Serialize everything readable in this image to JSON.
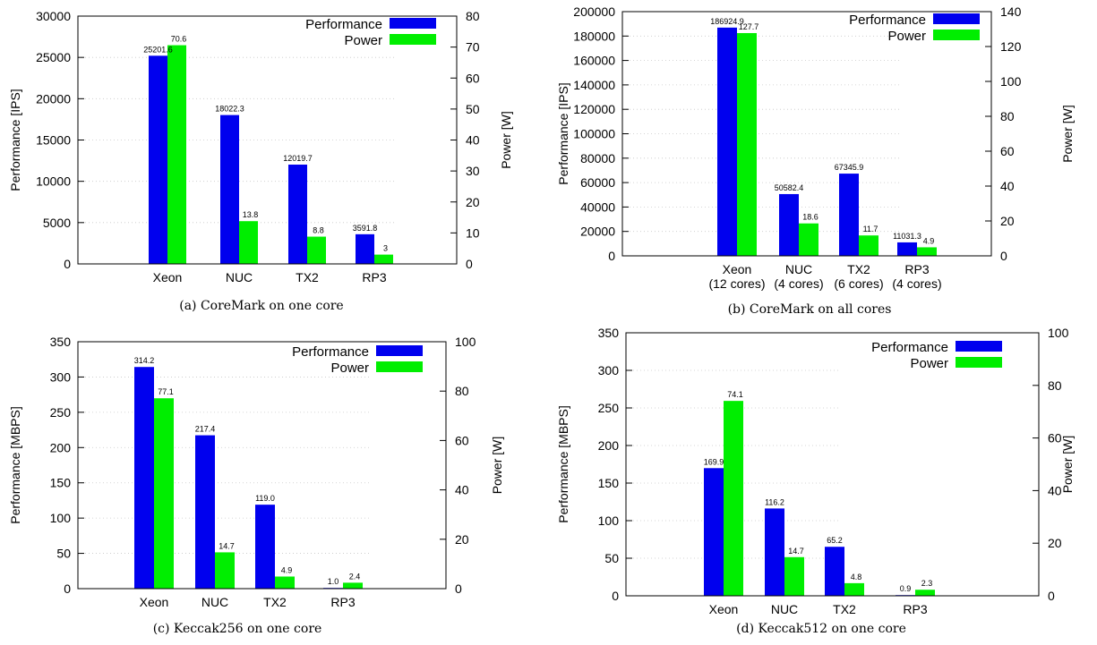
{
  "chart_data": [
    {
      "type": "bar",
      "caption": "(a) CoreMark on one core",
      "categories": [
        "Xeon",
        "NUC",
        "TX2",
        "RP3"
      ],
      "ylabel": "Performance [IPS]",
      "y2label": "Power [W]",
      "ylim": [
        0,
        30000
      ],
      "y2lim": [
        0,
        80
      ],
      "yticks": [
        "0",
        "5000",
        "10000",
        "15000",
        "20000",
        "25000",
        "30000"
      ],
      "y2ticks": [
        "0",
        "10",
        "20",
        "30",
        "40",
        "50",
        "60",
        "70",
        "80"
      ],
      "legend_position": "top-right",
      "series": [
        {
          "name": "Performance",
          "axis": "left",
          "color": "#0000ee",
          "values": [
            25201.6,
            18022.3,
            12019.7,
            3591.8
          ],
          "labels": [
            "25201.6",
            "18022.3",
            "12019.7",
            "3591.8"
          ]
        },
        {
          "name": "Power",
          "axis": "right",
          "color": "#00ee00",
          "values": [
            70.6,
            13.8,
            8.8,
            3
          ],
          "labels": [
            "70.6",
            "13.8",
            "8.8",
            "3"
          ]
        }
      ]
    },
    {
      "type": "bar",
      "caption": "(b) CoreMark on all cores",
      "categories": [
        "Xeon\n(12 cores)",
        "NUC\n(4 cores)",
        "TX2\n(6 cores)",
        "RP3\n(4 cores)"
      ],
      "ylabel": "Performance [IPS]",
      "y2label": "Power [W]",
      "ylim": [
        0,
        200000
      ],
      "y2lim": [
        0,
        140
      ],
      "yticks": [
        "0",
        "20000",
        "40000",
        "60000",
        "80000",
        "100000",
        "120000",
        "140000",
        "160000",
        "180000",
        "200000"
      ],
      "y2ticks": [
        "0",
        "20",
        "40",
        "60",
        "80",
        "100",
        "120",
        "140"
      ],
      "legend_position": "top-right",
      "series": [
        {
          "name": "Performance",
          "axis": "left",
          "color": "#0000ee",
          "values": [
            186924.9,
            50582.4,
            67345.9,
            11031.3
          ],
          "labels": [
            "186924.9",
            "50582.4",
            "67345.9",
            "11031.3"
          ]
        },
        {
          "name": "Power",
          "axis": "right",
          "color": "#00ee00",
          "values": [
            127.7,
            18.6,
            11.7,
            4.9
          ],
          "labels": [
            "127.7",
            "18.6",
            "11.7",
            "4.9"
          ]
        }
      ]
    },
    {
      "type": "bar",
      "caption": "(c) Keccak256 on one core",
      "categories": [
        "Xeon",
        "NUC",
        "TX2",
        "RP3"
      ],
      "ylabel": "Performance [MBPS]",
      "y2label": "Power [W]",
      "ylim": [
        0,
        350
      ],
      "y2lim": [
        0,
        100
      ],
      "yticks": [
        "0",
        "50",
        "100",
        "150",
        "200",
        "250",
        "300",
        "350"
      ],
      "y2ticks": [
        "0",
        "20",
        "40",
        "60",
        "80",
        "100"
      ],
      "legend_position": "top-right",
      "series": [
        {
          "name": "Performance",
          "axis": "left",
          "color": "#0000ee",
          "values": [
            314.2,
            217.4,
            119.0,
            1.0
          ],
          "labels": [
            "314.2",
            "217.4",
            "119.0",
            "1.0"
          ]
        },
        {
          "name": "Power",
          "axis": "right",
          "color": "#00ee00",
          "values": [
            77.1,
            14.7,
            4.9,
            2.4
          ],
          "labels": [
            "77.1",
            "14.7",
            "4.9",
            "2.4"
          ]
        }
      ]
    },
    {
      "type": "bar",
      "caption": "(d) Keccak512 on one core",
      "categories": [
        "Xeon",
        "NUC",
        "TX2",
        "RP3"
      ],
      "ylabel": "Performance [MBPS]",
      "y2label": "Power [W]",
      "ylim": [
        0,
        350
      ],
      "y2lim": [
        0,
        100
      ],
      "yticks": [
        "0",
        "50",
        "100",
        "150",
        "200",
        "250",
        "300",
        "350"
      ],
      "y2ticks": [
        "0",
        "20",
        "40",
        "60",
        "80",
        "100"
      ],
      "legend_position": "top-right",
      "series": [
        {
          "name": "Performance",
          "axis": "left",
          "color": "#0000ee",
          "values": [
            169.9,
            116.2,
            65.2,
            0.9
          ],
          "labels": [
            "169.9",
            "116.2",
            "65.2",
            "0.9"
          ]
        },
        {
          "name": "Power",
          "axis": "right",
          "color": "#00ee00",
          "values": [
            74.1,
            14.7,
            4.8,
            2.3
          ],
          "labels": [
            "74.1",
            "14.7",
            "4.8",
            "2.3"
          ]
        }
      ]
    }
  ]
}
